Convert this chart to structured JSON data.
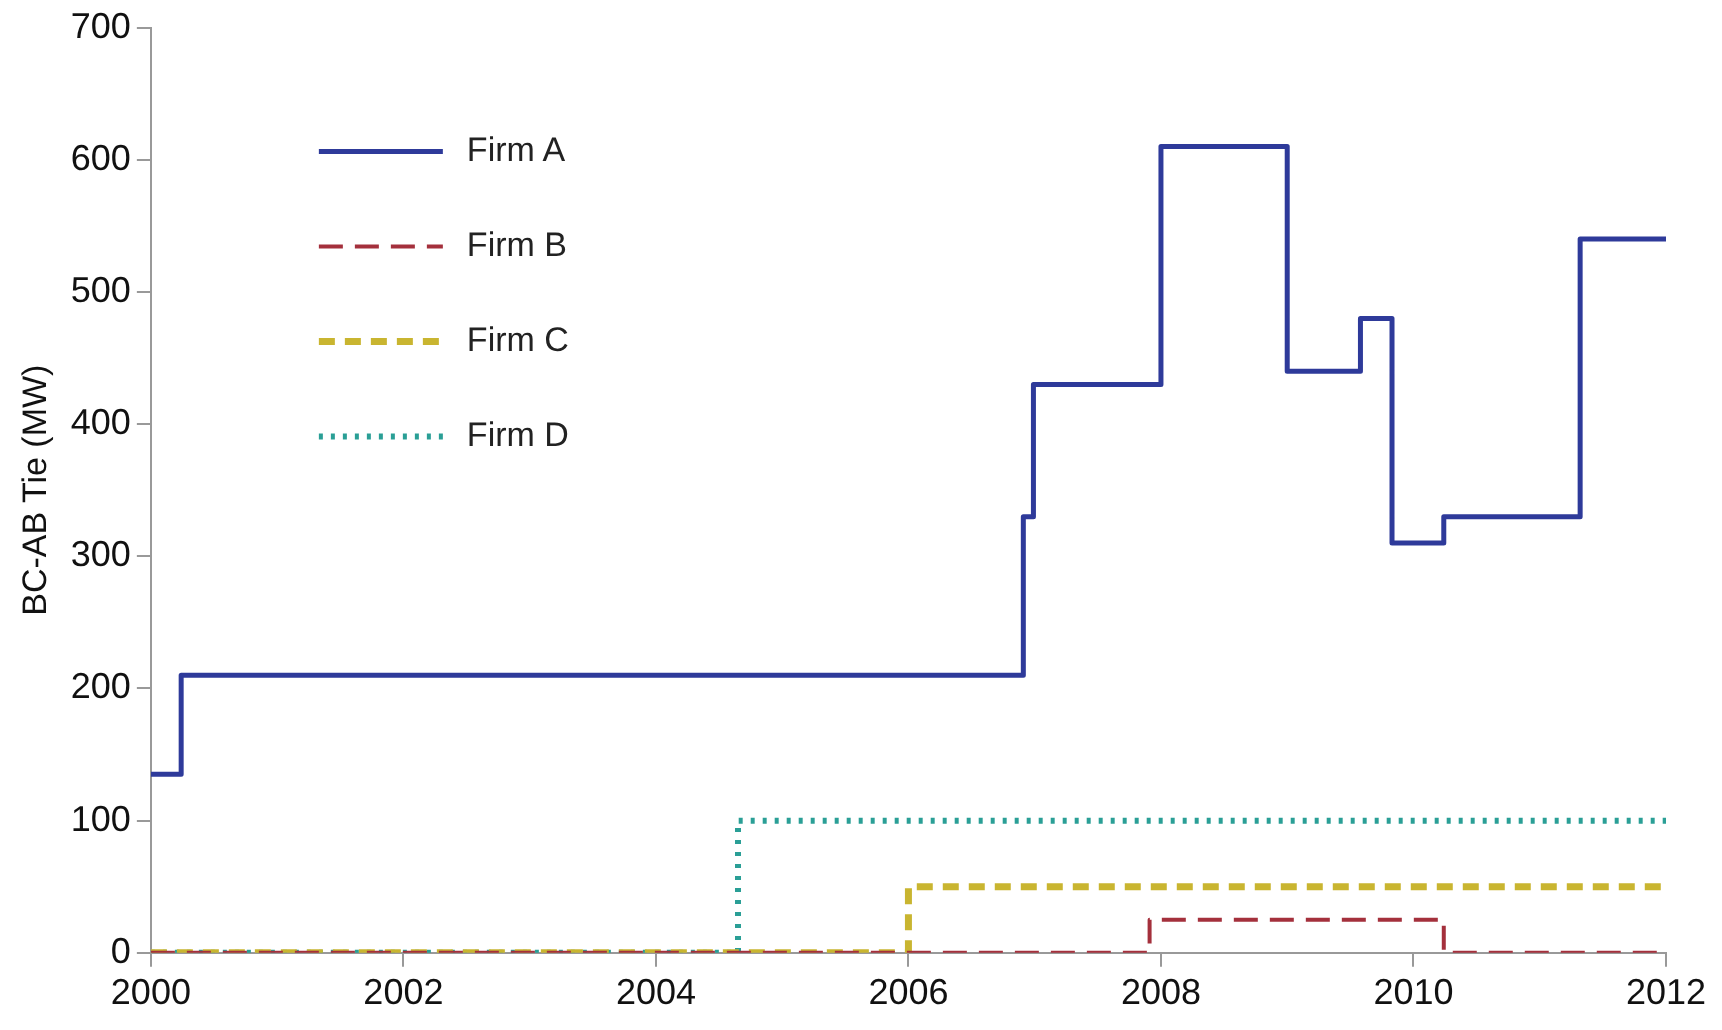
{
  "chart_data": {
    "type": "step",
    "ylabel": "BC-AB Tie (MW)",
    "xlim": [
      2000,
      2012
    ],
    "xticks": [
      2000,
      2002,
      2004,
      2006,
      2008,
      2010,
      2012
    ],
    "ylim": [
      0,
      700
    ],
    "yticks": [
      0,
      100,
      200,
      300,
      400,
      500,
      600,
      700
    ],
    "grid": false,
    "legend": "top left",
    "series": [
      {
        "name": "Firm A",
        "color": "#2e3a9a",
        "line_style": "solid",
        "x": [
          2000,
          2000.24,
          2006.91,
          2006.99,
          2008,
          2009,
          2009.58,
          2009.83,
          2010.24,
          2011.32,
          2012
        ],
        "values": [
          135,
          210,
          330,
          430,
          610,
          440,
          480,
          310,
          330,
          540,
          540
        ]
      },
      {
        "name": "Firm B",
        "color": "#a4303c",
        "line_style": "dashed",
        "x": [
          2000,
          2007.91,
          2010.24,
          2012
        ],
        "values": [
          0,
          25,
          0,
          0
        ]
      },
      {
        "name": "Firm C",
        "color": "#c9b530",
        "line_style": "dashed",
        "x": [
          2000,
          2006,
          2012
        ],
        "values": [
          0,
          50,
          50
        ]
      },
      {
        "name": "Firm D",
        "color": "#2a9f96",
        "line_style": "dotted",
        "x": [
          2000,
          2004.65,
          2012
        ],
        "values": [
          0,
          100,
          100
        ]
      }
    ]
  }
}
